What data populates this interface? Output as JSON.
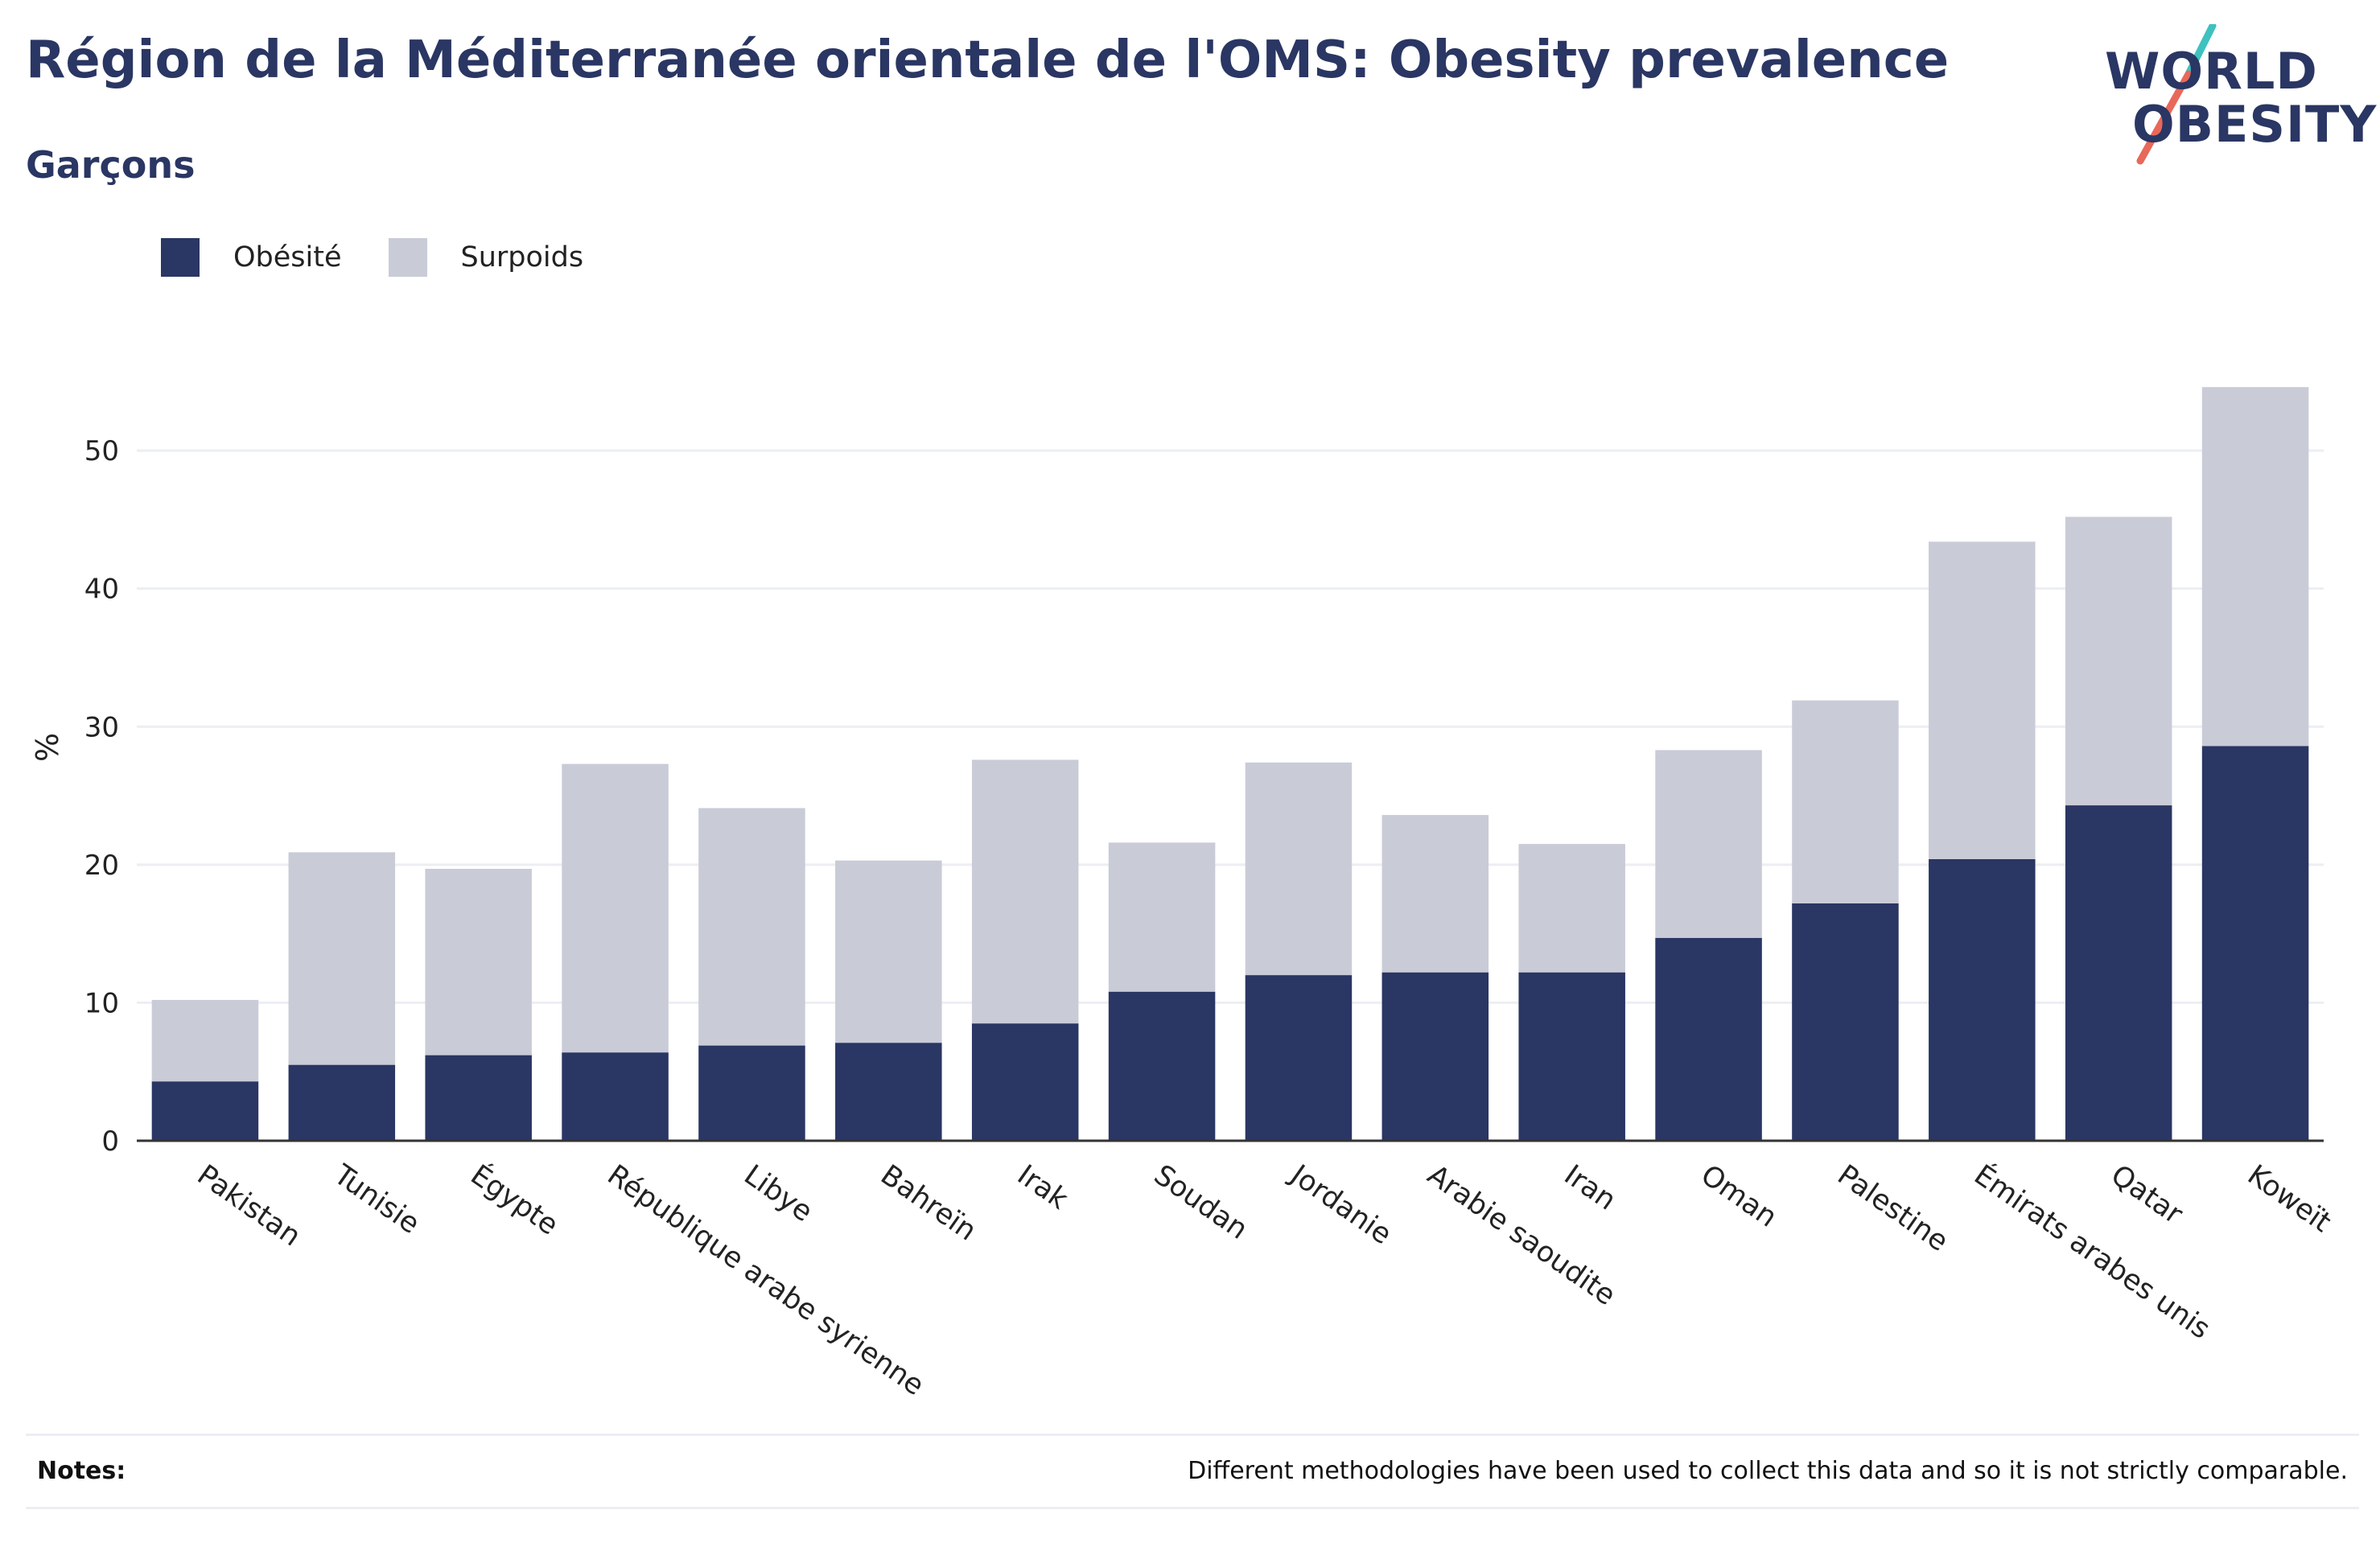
{
  "header": {
    "title": "Région de la Méditerranée orientale de l'OMS: Obesity prevalence",
    "subtitle": "Garçons"
  },
  "logo": {
    "line1": "WORLD",
    "line2": "OBESITY",
    "slash_colors": [
      "#3fc1c0",
      "#e8685a"
    ]
  },
  "colors": {
    "obesity": "#2a3663",
    "overweight": "#c9cbd7",
    "grid": "#eceef4",
    "axis": "#333333"
  },
  "chart_data": {
    "type": "bar",
    "stacked": true,
    "ylabel": "%",
    "ylim": [
      0,
      57
    ],
    "yticks": [
      0,
      10,
      20,
      30,
      40,
      50
    ],
    "grid": true,
    "legend_position": "top-left",
    "categories": [
      "Pakistan",
      "Tunisie",
      "Égypte",
      "République arabe syrienne",
      "Libye",
      "Bahreïn",
      "Irak",
      "Soudan",
      "Jordanie",
      "Arabie saoudite",
      "Iran",
      "Oman",
      "Palestine",
      "Émirats arabes unis",
      "Qatar",
      "Koweït"
    ],
    "series": [
      {
        "name": "Obésité",
        "color": "#2a3663",
        "values": [
          4.3,
          5.5,
          6.2,
          6.4,
          6.9,
          7.1,
          8.5,
          10.8,
          12.0,
          12.2,
          12.2,
          14.7,
          17.2,
          20.4,
          24.3,
          28.6
        ]
      },
      {
        "name": "Surpoids",
        "color": "#c9cbd7",
        "values": [
          5.9,
          15.4,
          13.5,
          20.9,
          17.2,
          13.2,
          19.1,
          10.8,
          15.4,
          11.4,
          9.3,
          13.6,
          14.7,
          23.0,
          20.9,
          26.0
        ]
      }
    ]
  },
  "notes": {
    "label": "Notes:",
    "text": "Different methodologies have been used to collect this data and so it is not strictly comparable."
  }
}
